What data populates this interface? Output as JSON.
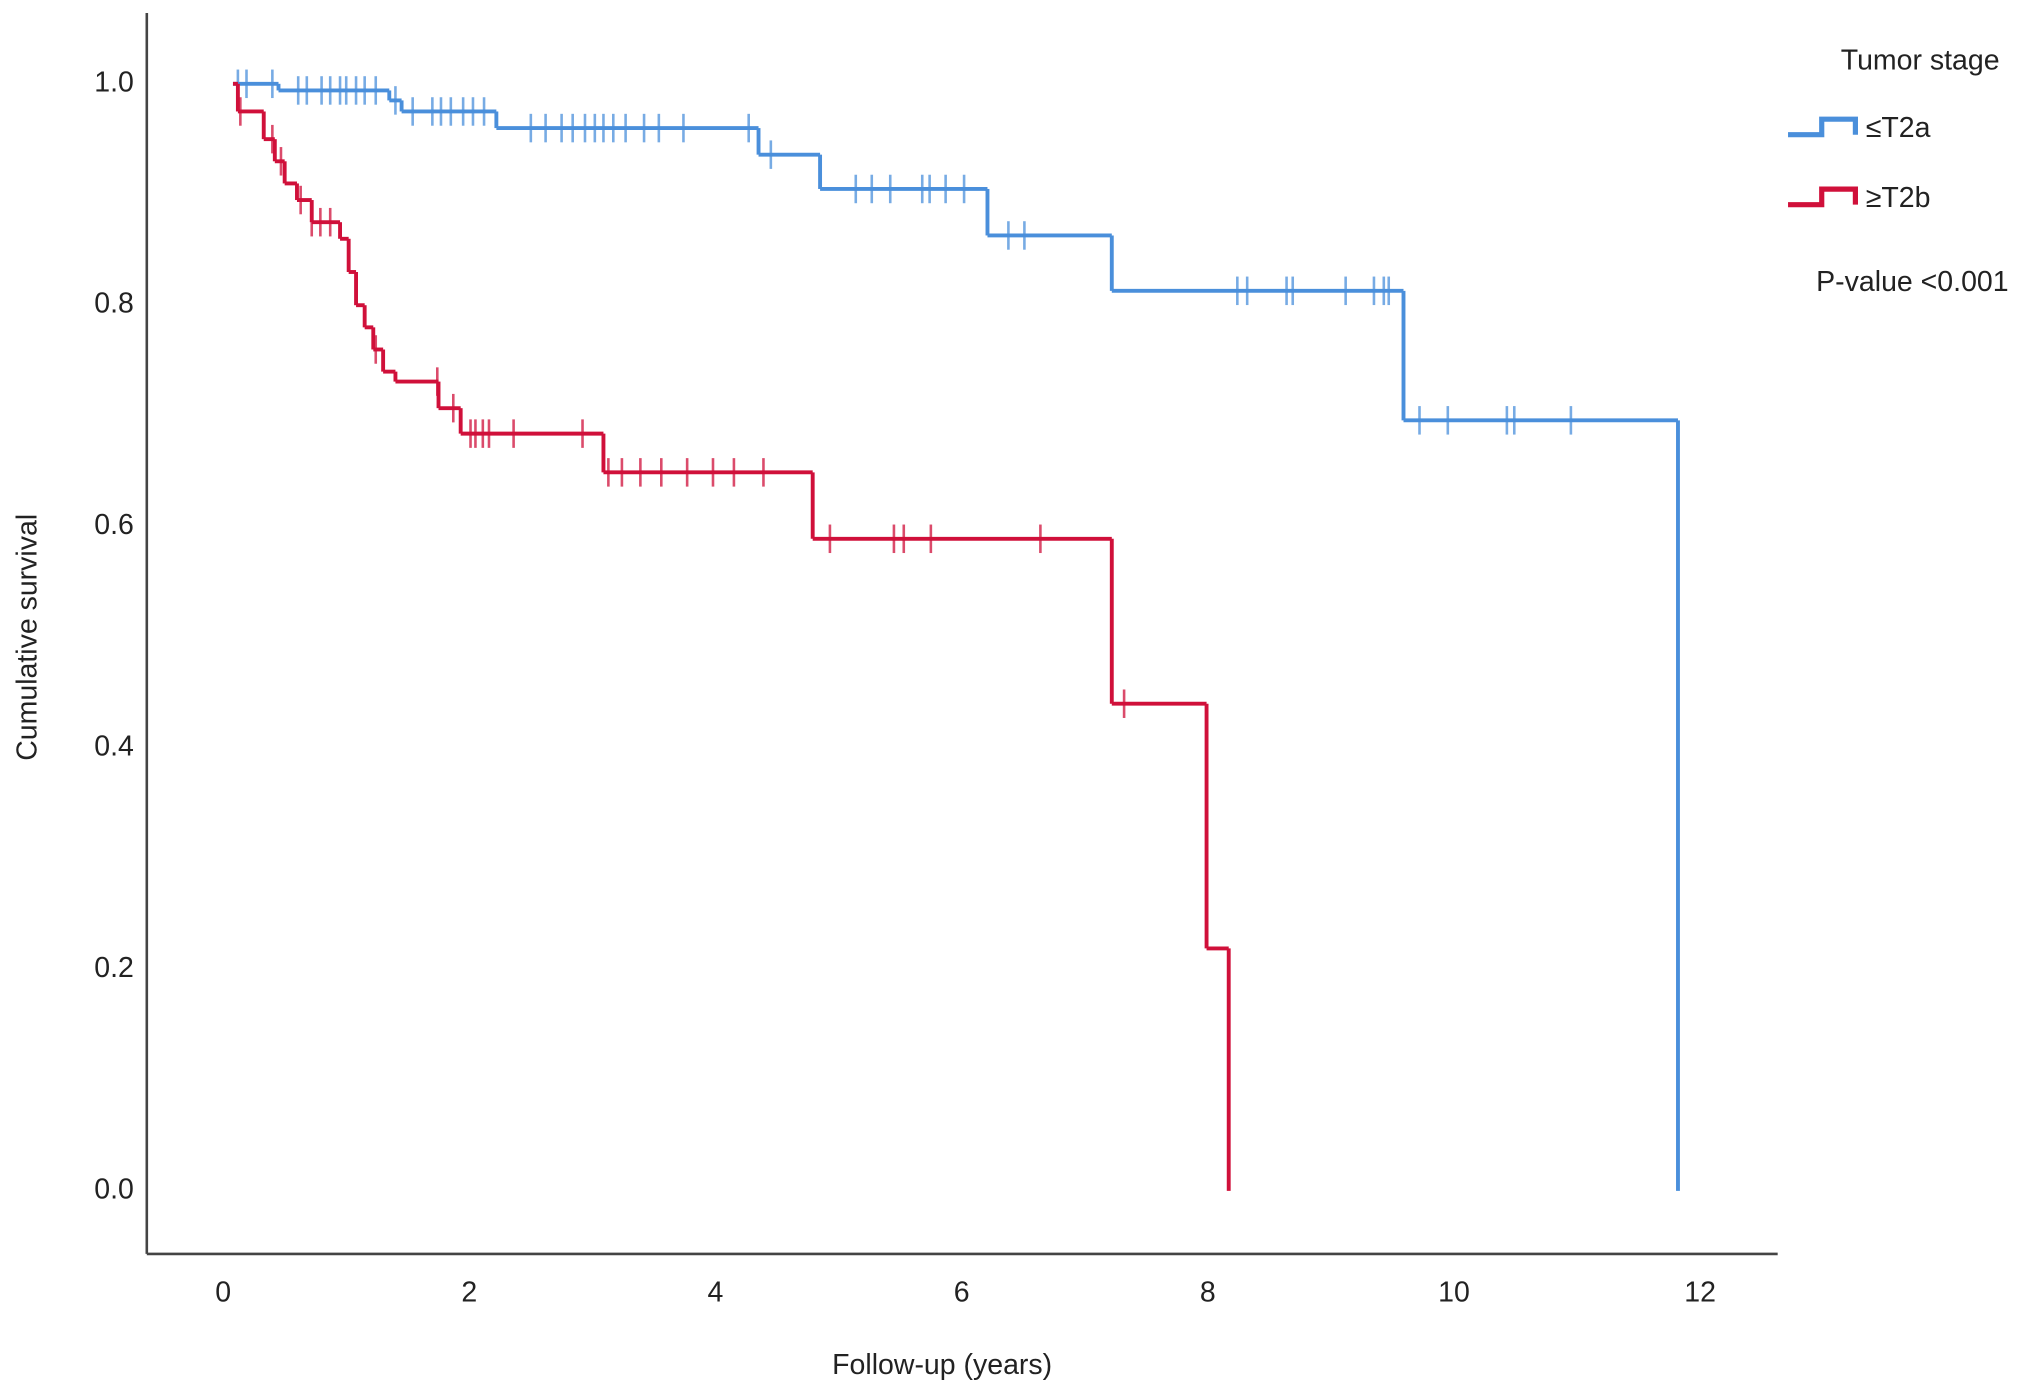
{
  "chart_data": {
    "type": "step",
    "x_label": "Follow-up (years)",
    "y_label": "Cumulative survival",
    "xlim": [
      -0.62,
      12.63
    ],
    "ylim": [
      -0.057,
      1.064
    ],
    "xticks": [
      0,
      2,
      4,
      6,
      8,
      10,
      12
    ],
    "yticks": [
      {
        "value": 0.0,
        "label": "0.0"
      },
      0.2,
      0.4,
      0.6,
      0.8,
      {
        "value": 1.0,
        "label": "1.0"
      }
    ],
    "legend_title": "Tumor stage",
    "legend_position": "right",
    "annotation": "P-value <0.001",
    "series": [
      {
        "name": "≤T2a",
        "color": "#4a8fdb",
        "x": [
          0.08,
          0.45,
          1.35,
          1.45,
          2.22,
          4.35,
          4.85,
          6.21,
          7.22,
          9.59,
          11.82
        ],
        "values": [
          1.0,
          0.994,
          0.985,
          0.975,
          0.96,
          0.936,
          0.905,
          0.863,
          0.813,
          0.696,
          0
        ],
        "censored": [
          0.12,
          0.19,
          0.4,
          0.61,
          0.68,
          0.8,
          0.87,
          0.95,
          1.0,
          1.08,
          1.15,
          1.24,
          1.4,
          1.54,
          1.7,
          1.77,
          1.85,
          1.95,
          2.03,
          2.12,
          2.5,
          2.62,
          2.75,
          2.84,
          2.94,
          3.02,
          3.09,
          3.17,
          3.27,
          3.42,
          3.54,
          3.74,
          4.27,
          4.45,
          5.14,
          5.27,
          5.42,
          5.68,
          5.74,
          5.87,
          6.02,
          6.38,
          6.51,
          8.24,
          8.32,
          8.64,
          8.69,
          9.12,
          9.35,
          9.43,
          9.47,
          9.72,
          9.95,
          10.43,
          10.49,
          10.95
        ]
      },
      {
        "name": "≥T2b",
        "color": "#d0103a",
        "x": [
          0.08,
          0.12,
          0.33,
          0.42,
          0.5,
          0.6,
          0.72,
          0.95,
          1.02,
          1.08,
          1.15,
          1.22,
          1.3,
          1.4,
          1.75,
          1.93,
          3.09,
          4.79,
          7.22,
          7.99,
          8.17
        ],
        "values": [
          1.0,
          0.975,
          0.95,
          0.93,
          0.91,
          0.895,
          0.875,
          0.86,
          0.83,
          0.8,
          0.78,
          0.76,
          0.74,
          0.731,
          0.707,
          0.684,
          0.649,
          0.589,
          0.44,
          0.219,
          0
        ],
        "censored": [
          0.14,
          0.4,
          0.47,
          0.63,
          0.72,
          0.79,
          0.87,
          1.24,
          1.74,
          1.87,
          2.01,
          2.05,
          2.11,
          2.16,
          2.36,
          2.92,
          3.13,
          3.24,
          3.39,
          3.56,
          3.77,
          3.98,
          4.15,
          4.39,
          4.93,
          5.45,
          5.53,
          5.75,
          6.64,
          7.32
        ]
      }
    ]
  }
}
